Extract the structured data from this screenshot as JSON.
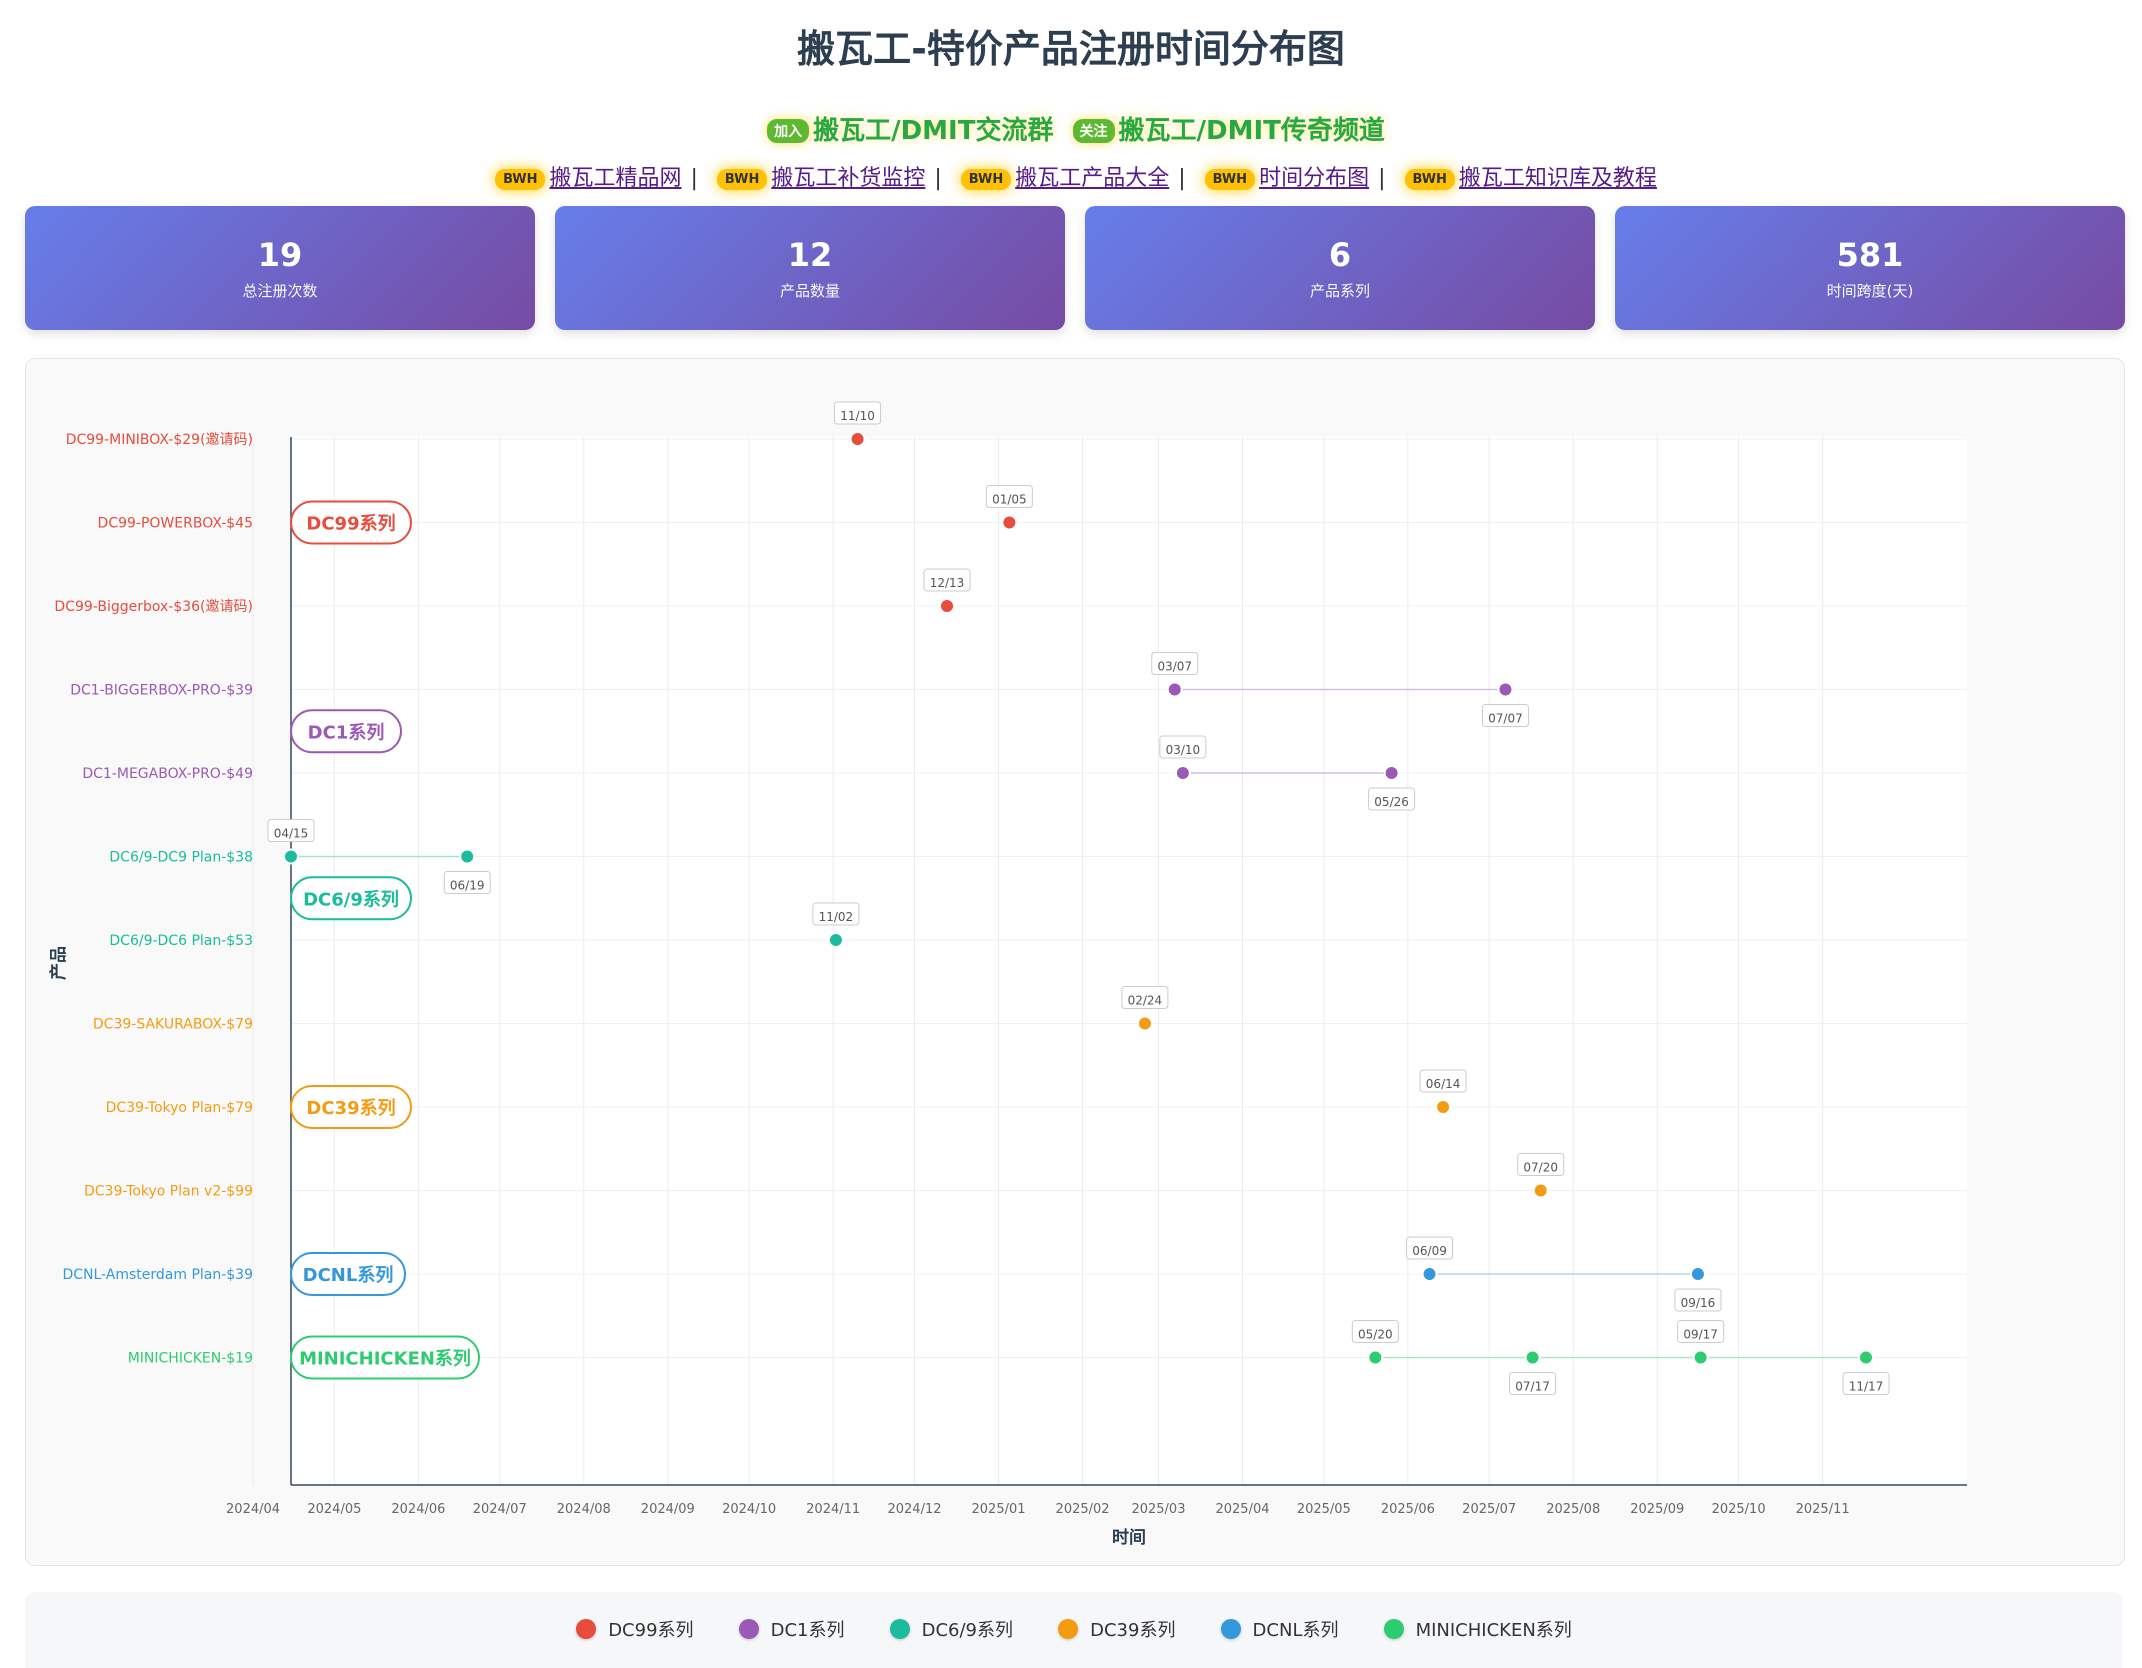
{
  "page": {
    "title": "搬瓦工-特价产品注册时间分布图",
    "promo": [
      {
        "tag": "加入",
        "text": "搬瓦工/DMIT交流群"
      },
      {
        "tag": "关注",
        "text": "搬瓦工/DMIT传奇频道"
      }
    ],
    "links": [
      {
        "tag": "BWH",
        "text": "搬瓦工精品网"
      },
      {
        "tag": "BWH",
        "text": "搬瓦工补货监控"
      },
      {
        "tag": "BWH",
        "text": "搬瓦工产品大全"
      },
      {
        "tag": "BWH",
        "text": "时间分布图"
      },
      {
        "tag": "BWH",
        "text": "搬瓦工知识库及教程"
      }
    ],
    "link_separator": "|"
  },
  "stats": [
    {
      "value": "19",
      "label": "总注册次数"
    },
    {
      "value": "12",
      "label": "产品数量"
    },
    {
      "value": "6",
      "label": "产品系列"
    },
    {
      "value": "581",
      "label": "时间跨度(天)"
    }
  ],
  "chart_data": {
    "type": "scatter",
    "xlabel": "时间",
    "ylabel": "产品",
    "x_ticks": [
      "2024/04",
      "2024/05",
      "2024/06",
      "2024/07",
      "2024/08",
      "2024/09",
      "2024/10",
      "2024/11",
      "2024/12",
      "2025/01",
      "2025/02",
      "2025/03",
      "2025/04",
      "2025/05",
      "2025/06",
      "2025/07",
      "2025/08",
      "2025/09",
      "2025/10",
      "2025/11"
    ],
    "grid": true,
    "legend_position": "bottom",
    "series": [
      {
        "name": "DC99系列",
        "color": "#e74c3c",
        "products": [
          {
            "name": "DC99-MINIBOX-$29(邀请码)",
            "dates": [
              "2024-11-10"
            ],
            "labels": [
              "11/10"
            ]
          },
          {
            "name": "DC99-POWERBOX-$45",
            "dates": [
              "2025-01-05"
            ],
            "labels": [
              "01/05"
            ]
          },
          {
            "name": "DC99-Biggerbox-$36(邀请码)",
            "dates": [
              "2024-12-13"
            ],
            "labels": [
              "12/13"
            ]
          }
        ]
      },
      {
        "name": "DC1系列",
        "color": "#9b59b6",
        "products": [
          {
            "name": "DC1-BIGGERBOX-PRO-$39",
            "dates": [
              "2025-03-07",
              "2025-07-07"
            ],
            "labels": [
              "03/07",
              "07/07"
            ]
          },
          {
            "name": "DC1-MEGABOX-PRO-$49",
            "dates": [
              "2025-03-10",
              "2025-05-26"
            ],
            "labels": [
              "03/10",
              "05/26"
            ]
          }
        ]
      },
      {
        "name": "DC6/9系列",
        "color": "#1abc9c",
        "products": [
          {
            "name": "DC6/9-DC9 Plan-$38",
            "dates": [
              "2024-04-15",
              "2024-06-19"
            ],
            "labels": [
              "04/15",
              "06/19"
            ]
          },
          {
            "name": "DC6/9-DC6 Plan-$53",
            "dates": [
              "2024-11-02"
            ],
            "labels": [
              "11/02"
            ]
          }
        ]
      },
      {
        "name": "DC39系列",
        "color": "#f39c12",
        "products": [
          {
            "name": "DC39-SAKURABOX-$79",
            "dates": [
              "2025-02-24"
            ],
            "labels": [
              "02/24"
            ]
          },
          {
            "name": "DC39-Tokyo Plan-$79",
            "dates": [
              "2025-06-14"
            ],
            "labels": [
              "06/14"
            ]
          },
          {
            "name": "DC39-Tokyo Plan v2-$99",
            "dates": [
              "2025-07-20"
            ],
            "labels": [
              "07/20"
            ]
          }
        ]
      },
      {
        "name": "DCNL系列",
        "color": "#3498db",
        "products": [
          {
            "name": "DCNL-Amsterdam Plan-$39",
            "dates": [
              "2025-06-09",
              "2025-09-16"
            ],
            "labels": [
              "06/09",
              "09/16"
            ]
          }
        ]
      },
      {
        "name": "MINICHICKEN系列",
        "color": "#2ecc71",
        "products": [
          {
            "name": "MINICHICKEN-$19",
            "dates": [
              "2025-05-20",
              "2025-07-17",
              "2025-09-17",
              "2025-11-17"
            ],
            "labels": [
              "05/20",
              "07/17",
              "09/17",
              "11/17"
            ]
          }
        ]
      }
    ]
  }
}
